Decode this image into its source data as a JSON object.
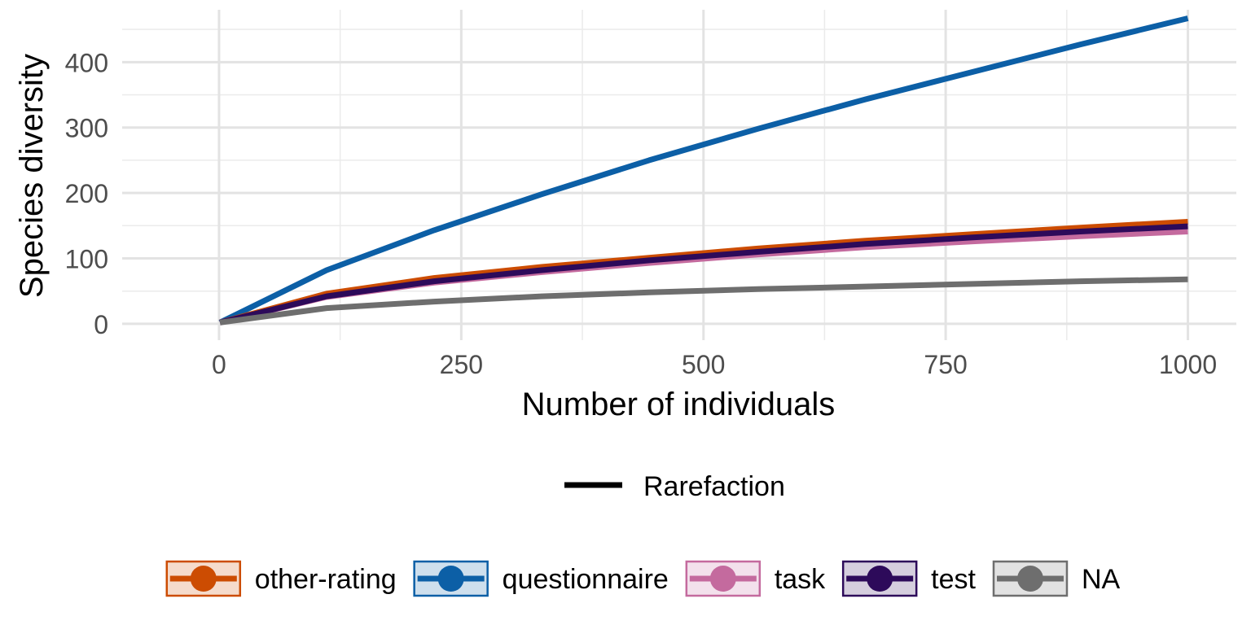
{
  "chart_data": {
    "type": "line",
    "xlabel": "Number of individuals",
    "ylabel": "Species diversity",
    "xlim": [
      -100,
      1050
    ],
    "ylim": [
      -25,
      480
    ],
    "x_ticks": [
      0,
      250,
      500,
      750,
      1000
    ],
    "y_ticks": [
      0,
      100,
      200,
      300,
      400
    ],
    "x_tick_labels": [
      "0",
      "250",
      "500",
      "750",
      "1000"
    ],
    "y_tick_labels": [
      "0",
      "100",
      "200",
      "300",
      "400"
    ],
    "grid": true,
    "legend_position": "bottom",
    "linetype_legend": {
      "label": "Rarefaction"
    },
    "series": [
      {
        "name": "other-rating",
        "color": "#CC4C02",
        "x": [
          1,
          111,
          222,
          333,
          444,
          556,
          667,
          778,
          889,
          1000
        ],
        "y": [
          2,
          46,
          70,
          87,
          101,
          115,
          127,
          137,
          147,
          156
        ]
      },
      {
        "name": "questionnaire",
        "color": "#0C5FA6",
        "x": [
          1,
          111,
          222,
          333,
          444,
          556,
          667,
          778,
          889,
          1000
        ],
        "y": [
          2,
          82,
          143,
          198,
          250,
          298,
          343,
          385,
          427,
          467
        ]
      },
      {
        "name": "task",
        "color": "#C46A9E",
        "x": [
          1,
          111,
          222,
          333,
          444,
          556,
          667,
          778,
          889,
          1000
        ],
        "y": [
          2,
          41,
          63,
          79,
          93,
          106,
          117,
          126,
          134,
          141
        ]
      },
      {
        "name": "test",
        "color": "#2D0A5A",
        "x": [
          1,
          111,
          222,
          333,
          444,
          556,
          667,
          778,
          889,
          1000
        ],
        "y": [
          2,
          42,
          65,
          82,
          97,
          110,
          122,
          132,
          141,
          149
        ]
      },
      {
        "name": "NA",
        "color": "#6E6E6E",
        "x": [
          1,
          111,
          222,
          333,
          444,
          556,
          667,
          778,
          889,
          1000
        ],
        "y": [
          2,
          24,
          34,
          42,
          48,
          53,
          57,
          61,
          65,
          68
        ]
      }
    ]
  }
}
